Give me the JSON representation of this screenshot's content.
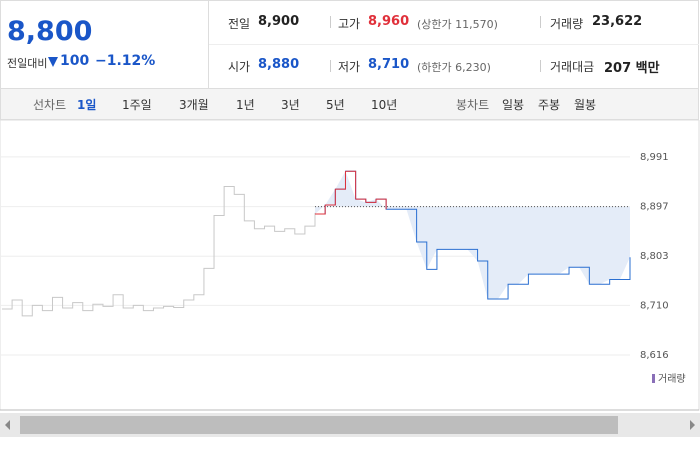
{
  "summary": {
    "price": "8,800",
    "change_label": "전일대비",
    "change": "100",
    "rate": "−1.12%"
  },
  "stats": [
    {
      "label": "전일",
      "value": "8,900"
    },
    {
      "label": "고가",
      "value": "8,960",
      "note": "(상한가 11,570)"
    },
    {
      "label": "거래량",
      "value": "23,622"
    },
    {
      "label": "시가",
      "value": "8,880"
    },
    {
      "label": "저가",
      "value": "8,710",
      "note": "(하한가 6,230)"
    },
    {
      "label": "거래대금",
      "value": "207 백만"
    }
  ],
  "tabs": {
    "line_label": "선차트",
    "line": [
      "1일",
      "1주일",
      "3개월",
      "1년",
      "3년",
      "5년",
      "10년"
    ],
    "candle_label": "봉차트",
    "candle": [
      "일봉",
      "주봉",
      "월봉"
    ]
  },
  "chart_data": {
    "type": "line",
    "ylim": [
      8597,
      9042
    ],
    "yticks": [
      {
        "value": 8991,
        "label": "8,991"
      },
      {
        "value": 8897,
        "label": "8,897"
      },
      {
        "value": 8803,
        "label": "8,803"
      },
      {
        "value": 8710,
        "label": "8,710"
      },
      {
        "value": 8616,
        "label": "8,616"
      }
    ],
    "baseline": 8897,
    "grid": true,
    "volume_label": "거래량",
    "series": [
      {
        "color": "#c8c8c8",
        "values": [
          8703,
          8720,
          8690,
          8710,
          8700,
          8725,
          8705,
          8715,
          8700,
          8712,
          8708,
          8730,
          8705,
          8710,
          8700,
          8705,
          8708,
          8706,
          8720,
          8730,
          8780,
          8880,
          8935,
          8920,
          8870,
          8855,
          8860,
          8850,
          8855,
          8845,
          8860,
          8885
        ]
      },
      {
        "color": "#2a6fd1",
        "up_color": "#e0303a",
        "area_color": "#e4ecf8",
        "values": [
          8883,
          8900,
          8930,
          8964,
          8911,
          8905,
          8911,
          8892,
          8892,
          8892,
          8830,
          8778,
          8816,
          8816,
          8816,
          8816,
          8794,
          8722,
          8722,
          8750,
          8750,
          8769,
          8769,
          8769,
          8769,
          8782,
          8782,
          8750,
          8750,
          8759,
          8759,
          8801
        ]
      }
    ]
  }
}
